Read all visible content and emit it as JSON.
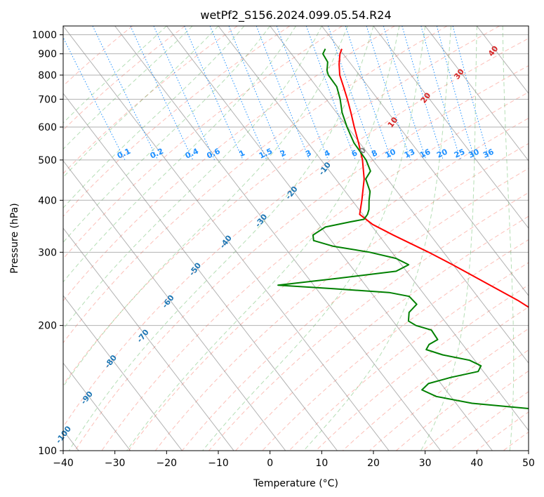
{
  "chart_data": {
    "type": "line",
    "title": "wetPf2_S156.2024.099.05.54.R24",
    "xlabel": "Temperature (°C)",
    "ylabel": "Pressure (hPa)",
    "xlim": [
      -40,
      50
    ],
    "ylim": [
      1050,
      100
    ],
    "y_scale": "log",
    "x_ticks": [
      -40,
      -30,
      -20,
      -10,
      0,
      10,
      20,
      30,
      40,
      50
    ],
    "y_ticks": [
      100,
      200,
      300,
      400,
      500,
      600,
      700,
      800,
      900,
      1000
    ],
    "grid": true,
    "colors": {
      "temperature": "#ff0000",
      "dewpoint": "#008000",
      "isotherm": "#808080",
      "dry_adiabat": "#fa8072",
      "moist_adiabat": "#2ca02c",
      "mixing_ratio": "#1e90ff",
      "isotherm_label": "#1f77b4",
      "freezing_label": "#808080",
      "warm_label": "#d62728"
    },
    "series": [
      {
        "key": "temperature",
        "p": [
          925,
          900,
          850,
          800,
          750,
          700,
          650,
          600,
          550,
          500,
          450,
          400,
          370,
          350,
          330,
          300,
          280,
          250,
          230,
          210,
          200,
          180,
          160,
          150,
          140,
          130,
          120,
          110,
          100
        ],
        "t": [
          10.5,
          9.4,
          7.7,
          6.2,
          5.2,
          4.1,
          2.8,
          1.3,
          -0.2,
          -2.0,
          -4.5,
          -8.1,
          -10.6,
          -9.6,
          -7.2,
          -2.9,
          -0.1,
          4.1,
          7.2,
          9.8,
          11.0,
          12.6,
          14.7,
          16.3,
          18.3,
          20.9,
          23.9,
          26.1,
          29.9
        ]
      },
      {
        "key": "dewpoint",
        "p": [
          925,
          900,
          860,
          820,
          800,
          750,
          700,
          650,
          600,
          550,
          500,
          470,
          450,
          420,
          400,
          380,
          370,
          360,
          355,
          345,
          330,
          320,
          310,
          300,
          290,
          280,
          270,
          260,
          250,
          245,
          240,
          235,
          225,
          215,
          205,
          200,
          195,
          185,
          180,
          175,
          170,
          165,
          160,
          155,
          150,
          145,
          140,
          135,
          130,
          125,
          120,
          115,
          110,
          105,
          100
        ],
        "t": [
          7.3,
          6.1,
          5.8,
          4.4,
          4.0,
          3.9,
          2.7,
          1.1,
          -0.1,
          -1.1,
          -1.3,
          -2.1,
          -4.2,
          -5.2,
          -6.7,
          -8.1,
          -9.1,
          -10.5,
          -13.5,
          -19.1,
          -22.7,
          -23.4,
          -20.4,
          -14.3,
          -10.1,
          -8.6,
          -12.0,
          -24.0,
          -36.9,
          -26.5,
          -16.5,
          -13.2,
          -12.9,
          -15.6,
          -17.0,
          -16.2,
          -13.9,
          -14.1,
          -16.5,
          -17.8,
          -15.4,
          -11.0,
          -9.6,
          -11.0,
          -17.2,
          -22.4,
          -24.6,
          -22.8,
          -16.9,
          -3.2,
          3.6,
          6.1,
          6.9,
          6.4,
          5.2
        ]
      }
    ],
    "isotherm_labels": [
      "-100",
      "-90",
      "-80",
      "-70",
      "-60",
      "-50",
      "-40",
      "-30",
      "-20",
      "-10",
      "0",
      "10",
      "20",
      "30",
      "40"
    ],
    "mixing_ratio_labels": [
      "0.1",
      "0.2",
      "0.4",
      "0.6",
      "1",
      "1.5",
      "2",
      "3",
      "4",
      "6",
      "8",
      "10",
      "13",
      "16",
      "20",
      "25",
      "30",
      "36"
    ]
  }
}
